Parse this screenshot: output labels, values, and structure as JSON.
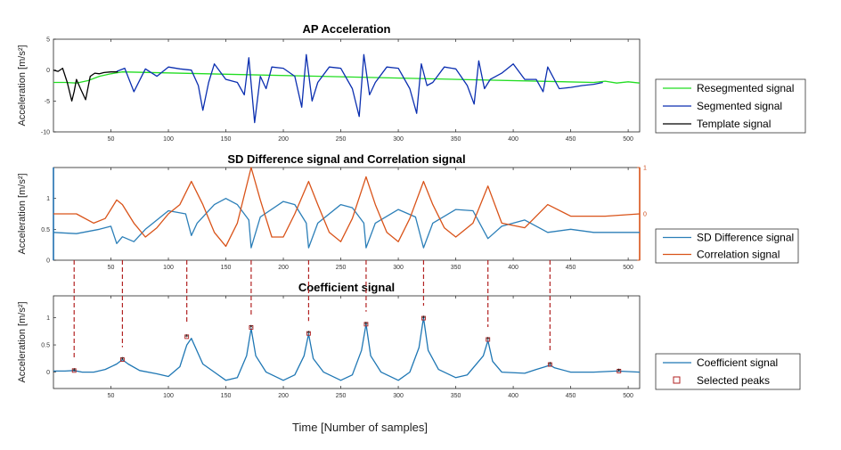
{
  "figure": {
    "xlabel": "Time [Number of samples]"
  },
  "chart_data": [
    {
      "type": "line",
      "title": "AP Acceleration",
      "ylabel": "Acceleration [m/s²]",
      "xlim": [
        0,
        510
      ],
      "ylim": [
        -10,
        5
      ],
      "xticks": [
        50,
        100,
        150,
        200,
        250,
        300,
        350,
        400,
        450,
        500
      ],
      "yticks": [
        5,
        0,
        -5,
        -10
      ],
      "legend": {
        "placement": "right"
      },
      "series": [
        {
          "name": "Resegmented signal",
          "color": "#22dd22",
          "x": [
            0,
            10,
            20,
            30,
            40,
            50,
            60,
            470,
            480,
            490,
            500,
            510
          ],
          "y": [
            -2,
            -2,
            -2.1,
            -1.7,
            -1,
            -0.6,
            -0.3,
            -2,
            -1.8,
            -2.1,
            -1.9,
            -2.1
          ]
        },
        {
          "name": "Segmented signal",
          "color": "#0b2fb0",
          "x": [
            55,
            62,
            70,
            80,
            90,
            100,
            110,
            120,
            126,
            130,
            135,
            140,
            150,
            160,
            166,
            170,
            175,
            180,
            185,
            190,
            200,
            210,
            216,
            220,
            225,
            230,
            240,
            250,
            260,
            266,
            270,
            275,
            280,
            290,
            300,
            310,
            316,
            320,
            325,
            330,
            340,
            350,
            360,
            366,
            370,
            375,
            380,
            390,
            400,
            410,
            420,
            426,
            430,
            440,
            450,
            460,
            470,
            478
          ],
          "y": [
            -0.2,
            0.3,
            -3.5,
            0.2,
            -1,
            0.5,
            0.2,
            0,
            -2.5,
            -6.5,
            -2,
            1,
            -1.5,
            -2,
            -4,
            2,
            -8.5,
            -1,
            -3,
            0.5,
            0.3,
            -1,
            -6,
            2.5,
            -5,
            -2,
            0.5,
            0.3,
            -3,
            -7.5,
            2.5,
            -4,
            -2,
            0.5,
            0.3,
            -3,
            -7,
            1,
            -2.5,
            -2,
            0.5,
            0.2,
            -2.5,
            -5.5,
            1.5,
            -3,
            -1.5,
            -0.5,
            1,
            -1.5,
            -1.5,
            -3.5,
            0.5,
            -3,
            -2.8,
            -2.5,
            -2.3,
            -2
          ]
        },
        {
          "name": "Template signal",
          "color": "#000000",
          "x": [
            0,
            4,
            8,
            12,
            16,
            18,
            20,
            24,
            28,
            32,
            36,
            40,
            44,
            50,
            56
          ],
          "y": [
            0,
            -0.2,
            0.3,
            -2,
            -5,
            -3.5,
            -1.5,
            -3.2,
            -4.8,
            -1,
            -0.5,
            -0.6,
            -0.4,
            -0.3,
            -0.3
          ]
        }
      ]
    },
    {
      "type": "line",
      "title": "SD Difference signal and Correlation signal",
      "ylabel": "Acceleration [m/s²]",
      "xlim": [
        0,
        510
      ],
      "ylim": [
        0,
        1.5
      ],
      "y2lim": [
        -1,
        1
      ],
      "xticks": [
        50,
        100,
        150,
        200,
        250,
        300,
        350,
        400,
        450,
        500
      ],
      "yticks": [
        1,
        0.5,
        0
      ],
      "y2ticks": [
        1,
        0,
        -1
      ],
      "y2ticklabels": [
        "1",
        "0",
        ""
      ],
      "legend": {
        "placement": "right"
      },
      "series": [
        {
          "name": "SD Difference signal",
          "color": "#2c7fb8",
          "axis": "left",
          "x": [
            0,
            20,
            40,
            50,
            55,
            60,
            70,
            80,
            100,
            115,
            120,
            125,
            140,
            150,
            160,
            170,
            172,
            180,
            200,
            210,
            220,
            222,
            230,
            250,
            260,
            270,
            272,
            280,
            300,
            315,
            322,
            330,
            350,
            365,
            378,
            390,
            410,
            430,
            450,
            470,
            510
          ],
          "y": [
            0.45,
            0.43,
            0.5,
            0.55,
            0.27,
            0.38,
            0.3,
            0.5,
            0.8,
            0.75,
            0.4,
            0.6,
            0.9,
            1.0,
            0.9,
            0.65,
            0.2,
            0.7,
            0.95,
            0.9,
            0.6,
            0.2,
            0.6,
            0.9,
            0.85,
            0.6,
            0.2,
            0.6,
            0.82,
            0.7,
            0.2,
            0.6,
            0.82,
            0.8,
            0.35,
            0.55,
            0.65,
            0.45,
            0.5,
            0.45,
            0.45
          ]
        },
        {
          "name": "Correlation signal",
          "color": "#d95319",
          "axis": "right",
          "x": [
            0,
            20,
            35,
            45,
            55,
            60,
            70,
            80,
            90,
            100,
            110,
            120,
            130,
            140,
            150,
            160,
            172,
            180,
            190,
            200,
            210,
            222,
            230,
            240,
            250,
            260,
            272,
            280,
            290,
            300,
            310,
            322,
            330,
            340,
            350,
            365,
            378,
            390,
            410,
            430,
            450,
            480,
            510
          ],
          "y": [
            0,
            0,
            -0.2,
            -0.1,
            0.3,
            0.2,
            -0.2,
            -0.5,
            -0.3,
            0,
            0.2,
            0.7,
            0.2,
            -0.4,
            -0.7,
            -0.2,
            1,
            0.3,
            -0.5,
            -0.5,
            0,
            0.7,
            0.2,
            -0.4,
            -0.6,
            -0.1,
            0.8,
            0.2,
            -0.4,
            -0.6,
            -0.1,
            0.7,
            0.2,
            -0.3,
            -0.5,
            -0.2,
            0.6,
            -0.2,
            -0.3,
            0.2,
            -0.05,
            -0.05,
            0
          ]
        }
      ]
    },
    {
      "type": "line",
      "title": "Coefficient signal",
      "ylabel": "Acceleration [m/s²]",
      "xlim": [
        0,
        510
      ],
      "ylim": [
        -0.3,
        1.4
      ],
      "xticks": [
        50,
        100,
        150,
        200,
        250,
        300,
        350,
        400,
        450,
        500
      ],
      "yticks": [
        1,
        0.5,
        0
      ],
      "legend": {
        "placement": "right"
      },
      "series": [
        {
          "name": "Coefficient signal",
          "color": "#1f77b4",
          "x": [
            0,
            10,
            18,
            25,
            35,
            45,
            55,
            60,
            65,
            75,
            90,
            100,
            110,
            116,
            120,
            130,
            140,
            150,
            160,
            168,
            172,
            176,
            185,
            200,
            210,
            218,
            222,
            226,
            235,
            250,
            260,
            268,
            272,
            276,
            285,
            300,
            310,
            318,
            322,
            326,
            335,
            350,
            360,
            374,
            378,
            382,
            390,
            410,
            420,
            428,
            432,
            436,
            450,
            470,
            490,
            510
          ],
          "y": [
            0.02,
            0.02,
            0.03,
            0.0,
            0.0,
            0.05,
            0.15,
            0.23,
            0.15,
            0.03,
            -0.03,
            -0.08,
            0.1,
            0.5,
            0.62,
            0.15,
            0.0,
            -0.15,
            -0.1,
            0.3,
            0.8,
            0.3,
            0.0,
            -0.15,
            -0.05,
            0.3,
            0.7,
            0.25,
            0.0,
            -0.15,
            -0.05,
            0.4,
            0.88,
            0.3,
            0.0,
            -0.15,
            0.0,
            0.45,
            1.0,
            0.4,
            0.05,
            -0.1,
            -0.05,
            0.3,
            0.58,
            0.2,
            0.0,
            -0.02,
            0.05,
            0.1,
            0.13,
            0.08,
            0.0,
            0.0,
            0.02,
            0.0
          ]
        },
        {
          "name": "Selected peaks",
          "color": "#b22222",
          "marker": "square",
          "x": [
            18,
            60,
            116,
            172,
            222,
            272,
            322,
            378,
            432,
            492
          ],
          "y": [
            0.03,
            0.23,
            0.65,
            0.82,
            0.71,
            0.88,
            0.99,
            0.6,
            0.14,
            0.02
          ]
        }
      ]
    }
  ]
}
